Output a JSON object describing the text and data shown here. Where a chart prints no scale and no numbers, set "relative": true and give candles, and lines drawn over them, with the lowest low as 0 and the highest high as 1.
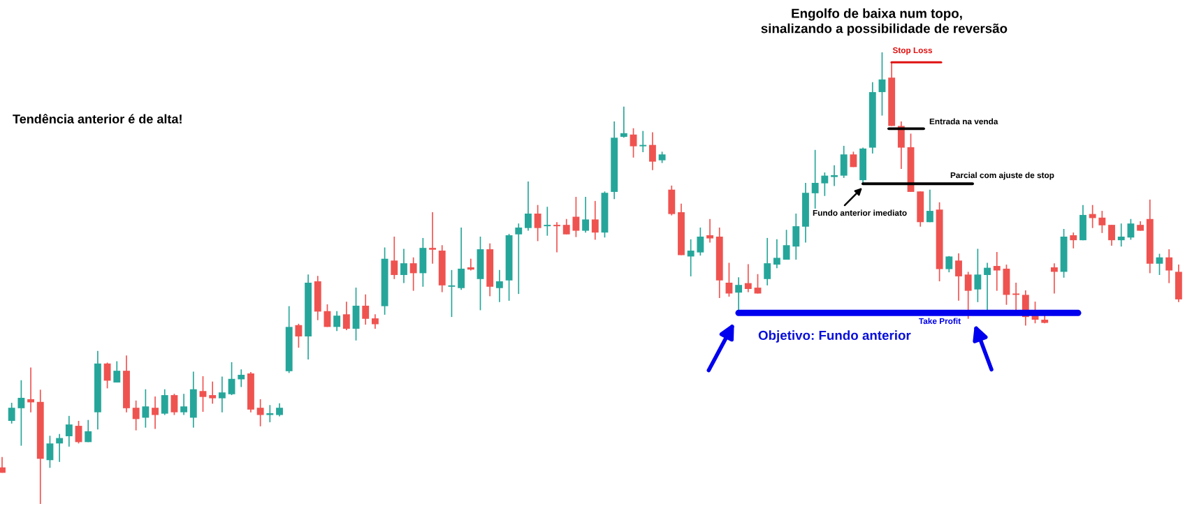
{
  "chart_data": {
    "type": "candlestick",
    "relative": true,
    "title": "Engolfo de baixa num topo,\n    sinalizando a possibilidade de reversão",
    "categories": [
      null,
      null,
      null,
      null,
      null,
      null,
      null,
      null,
      null,
      null,
      null,
      null,
      null,
      null,
      null,
      null,
      null,
      null,
      null,
      null,
      null,
      null,
      null,
      null,
      null,
      null,
      null,
      null,
      null,
      null,
      null,
      null,
      null,
      null,
      null,
      null,
      null,
      null,
      null,
      null,
      null,
      null,
      null,
      null,
      null,
      null,
      null,
      null,
      null,
      null,
      null,
      null,
      null,
      null,
      null,
      null,
      null,
      null,
      null,
      null,
      null,
      null,
      null,
      null,
      null,
      null,
      null,
      null,
      null,
      null,
      null,
      null,
      null,
      null,
      null,
      null,
      null,
      null,
      null,
      null,
      null,
      null,
      null,
      null,
      null,
      null,
      null,
      null,
      null,
      null,
      null,
      null,
      null,
      null,
      null,
      null,
      null,
      null,
      null,
      null,
      null,
      null,
      null,
      null,
      null,
      null,
      null,
      null,
      null,
      null,
      null,
      null,
      null,
      null,
      null,
      null,
      null,
      null,
      null,
      null,
      null,
      null,
      null,
      null
    ],
    "ohlc": [
      [
        0.081,
        0.104,
        0.069,
        0.069
      ],
      [
        0.184,
        0.224,
        0.178,
        0.213
      ],
      [
        0.212,
        0.274,
        0.129,
        0.235
      ],
      [
        0.232,
        0.302,
        0.203,
        0.225
      ],
      [
        0.226,
        0.253,
        0,
        0.1
      ],
      [
        0.097,
        0.151,
        0.08,
        0.134
      ],
      [
        0.134,
        0.155,
        0.093,
        0.146
      ],
      [
        0.15,
        0.195,
        0.127,
        0.176
      ],
      [
        0.173,
        0.184,
        0.134,
        0.137
      ],
      [
        0.137,
        0.186,
        0.137,
        0.161
      ],
      [
        0.203,
        0.339,
        0.165,
        0.311
      ],
      [
        0.311,
        0.313,
        0.256,
        0.273
      ],
      [
        0.269,
        0.316,
        0.269,
        0.295
      ],
      [
        0.295,
        0.329,
        0.203,
        0.212
      ],
      [
        0.213,
        0.229,
        0.163,
        0.188
      ],
      [
        0.191,
        0.254,
        0.169,
        0.216
      ],
      [
        0.213,
        0.238,
        0.166,
        0.197
      ],
      [
        0.2,
        0.254,
        0.197,
        0.241
      ],
      [
        0.241,
        0.244,
        0.197,
        0.203
      ],
      [
        0.203,
        0.244,
        0.197,
        0.216
      ],
      [
        0.191,
        0.293,
        0.169,
        0.254
      ],
      [
        0.25,
        0.283,
        0.204,
        0.237
      ],
      [
        0.241,
        0.271,
        0.222,
        0.234
      ],
      [
        0.234,
        0.282,
        0.203,
        0.247
      ],
      [
        0.243,
        0.314,
        0.241,
        0.277
      ],
      [
        0.276,
        0.298,
        0.259,
        0.286
      ],
      [
        0.289,
        0.292,
        0.203,
        0.209
      ],
      [
        0.213,
        0.232,
        0.172,
        0.197
      ],
      [
        0.197,
        0.219,
        0.181,
        0.201
      ],
      [
        0.197,
        0.223,
        0.194,
        0.213
      ],
      [
        0.294,
        0.438,
        0.29,
        0.392
      ],
      [
        0.396,
        0.399,
        0.346,
        0.371
      ],
      [
        0.371,
        0.508,
        0.32,
        0.49
      ],
      [
        0.493,
        0.505,
        0.407,
        0.426
      ],
      [
        0.427,
        0.442,
        0.392,
        0.392
      ],
      [
        0.392,
        0.427,
        0.383,
        0.417
      ],
      [
        0.42,
        0.448,
        0.385,
        0.388
      ],
      [
        0.388,
        0.479,
        0.362,
        0.439
      ],
      [
        0.439,
        0.464,
        0.397,
        0.41
      ],
      [
        0.411,
        0.42,
        0.388,
        0.398
      ],
      [
        0.438,
        0.568,
        0.419,
        0.543
      ],
      [
        0.539,
        0.592,
        0.498,
        0.507
      ],
      [
        0.507,
        0.565,
        0.489,
        0.533
      ],
      [
        0.533,
        0.546,
        0.472,
        0.511
      ],
      [
        0.511,
        0.589,
        0.481,
        0.567
      ],
      [
        0.567,
        0.646,
        0.532,
        0.563
      ],
      [
        0.561,
        0.573,
        0.469,
        0.484
      ],
      [
        0.481,
        0.518,
        0.414,
        0.482
      ],
      [
        0.478,
        0.612,
        0.474,
        0.521
      ],
      [
        0.524,
        0.543,
        0.517,
        0.519
      ],
      [
        0.498,
        0.592,
        0.429,
        0.564
      ],
      [
        0.564,
        0.577,
        0.46,
        0.481
      ],
      [
        0.478,
        0.518,
        0.447,
        0.493
      ],
      [
        0.495,
        0.598,
        0.45,
        0.595
      ],
      [
        0.597,
        0.621,
        0.465,
        0.612
      ],
      [
        0.611,
        0.714,
        0.605,
        0.643
      ],
      [
        0.643,
        0.662,
        0.582,
        0.611
      ],
      [
        0.615,
        0.658,
        0.594,
        0.618
      ],
      [
        0.618,
        0.624,
        0.557,
        0.615
      ],
      [
        0.618,
        0.631,
        0.597,
        0.597
      ],
      [
        0.636,
        0.68,
        0.591,
        0.605
      ],
      [
        0.605,
        0.68,
        0.601,
        0.63
      ],
      [
        0.63,
        0.671,
        0.585,
        0.601
      ],
      [
        0.601,
        0.692,
        0.59,
        0.689
      ],
      [
        0.691,
        0.847,
        0.675,
        0.811
      ],
      [
        0.813,
        0.88,
        0.811,
        0.821
      ],
      [
        0.818,
        0.832,
        0.767,
        0.792
      ],
      [
        0.792,
        0.826,
        0.779,
        0.795
      ],
      [
        0.795,
        0.823,
        0.739,
        0.758
      ],
      [
        0.761,
        0.78,
        0.755,
        0.774
      ],
      [
        0.696,
        0.705,
        0.639,
        0.642
      ],
      [
        0.646,
        0.665,
        0.551,
        0.551
      ],
      [
        0.548,
        0.586,
        0.504,
        0.561
      ],
      [
        0.557,
        0.612,
        0.55,
        0.592
      ],
      [
        0.595,
        0.631,
        0.579,
        0.588
      ],
      [
        0.592,
        0.612,
        0.456,
        0.495
      ],
      [
        0.49,
        0.534,
        0.459,
        0.466
      ],
      [
        0.468,
        0.502,
        0.428,
        0.485
      ],
      [
        0.489,
        0.531,
        0.469,
        0.476
      ],
      [
        0.479,
        0.509,
        0.466,
        0.466
      ],
      [
        0.498,
        0.589,
        0.484,
        0.533
      ],
      [
        0.53,
        0.586,
        0.522,
        0.545
      ],
      [
        0.541,
        0.607,
        0.541,
        0.573
      ],
      [
        0.57,
        0.643,
        0.541,
        0.615
      ],
      [
        0.614,
        0.711,
        0.579,
        0.689
      ],
      [
        0.688,
        0.784,
        0.654,
        0.711
      ],
      [
        0.71,
        0.734,
        0.682,
        0.727
      ],
      [
        0.724,
        0.75,
        0.704,
        0.728
      ],
      [
        0.727,
        0.793,
        0.722,
        0.774
      ],
      [
        0.774,
        0.78,
        0.746,
        0.746
      ],
      [
        0.717,
        0.789,
        0.71,
        0.787
      ],
      [
        0.789,
        0.934,
        0.776,
        0.912
      ],
      [
        0.912,
        1,
        0.86,
        0.94
      ],
      [
        0.944,
        0.978,
        0.837,
        0.837
      ],
      [
        0.837,
        0.847,
        0.742,
        0.789
      ],
      [
        0.79,
        0.82,
        0.691,
        0.691
      ],
      [
        0.692,
        0.692,
        0.614,
        0.624
      ],
      [
        0.624,
        0.696,
        0.624,
        0.649
      ],
      [
        0.652,
        0.668,
        0.493,
        0.52
      ],
      [
        0.52,
        0.549,
        0.513,
        0.548
      ],
      [
        0.539,
        0.555,
        0.45,
        0.504
      ],
      [
        0.508,
        0.514,
        0.41,
        0.472
      ],
      [
        0.475,
        0.565,
        0.447,
        0.508
      ],
      [
        0.507,
        0.534,
        0.428,
        0.523
      ],
      [
        0.527,
        0.558,
        0.472,
        0.517
      ],
      [
        0.521,
        0.53,
        0.441,
        0.463
      ],
      [
        0.466,
        0.49,
        0.428,
        0.463
      ],
      [
        0.463,
        0.473,
        0.395,
        0.414
      ],
      [
        0.418,
        0.448,
        0.4,
        0.408
      ],
      [
        0.408,
        0.419,
        0.4,
        0.401
      ],
      [
        0.524,
        0.533,
        0.466,
        0.514
      ],
      [
        0.514,
        0.609,
        0.501,
        0.592
      ],
      [
        0.595,
        0.601,
        0.566,
        0.584
      ],
      [
        0.584,
        0.662,
        0.584,
        0.64
      ],
      [
        0.642,
        0.662,
        0.611,
        0.633
      ],
      [
        0.634,
        0.649,
        0.6,
        0.617
      ],
      [
        0.618,
        0.618,
        0.572,
        0.584
      ],
      [
        0.584,
        0.621,
        0.57,
        0.592
      ],
      [
        0.59,
        0.631,
        0.585,
        0.621
      ],
      [
        0.618,
        0.626,
        0.605,
        0.605
      ],
      [
        0.631,
        0.674,
        0.511,
        0.532
      ],
      [
        0.532,
        0.554,
        0.507,
        0.546
      ],
      [
        0.546,
        0.564,
        0.489,
        0.517
      ],
      [
        0.514,
        0.53,
        0.447,
        0.453
      ]
    ],
    "ref_lines": [
      {
        "axis": "y",
        "value": 0.978,
        "label": "Stop Loss",
        "color": "#e01010"
      },
      {
        "axis": "y",
        "value": 0.831,
        "label": "Entrada na venda",
        "color": "#000000"
      },
      {
        "axis": "y",
        "value": 0.709,
        "label": "Parcial com ajuste de stop",
        "color": "#000000"
      },
      {
        "axis": "y",
        "value": 0.423,
        "label": "Take Profit",
        "color": "#0000ee"
      }
    ],
    "annotations": [
      "Tendência anterior é de alta!",
      "Objetivo: Fundo anterior",
      "Fundo anterior imediato"
    ]
  }
}
